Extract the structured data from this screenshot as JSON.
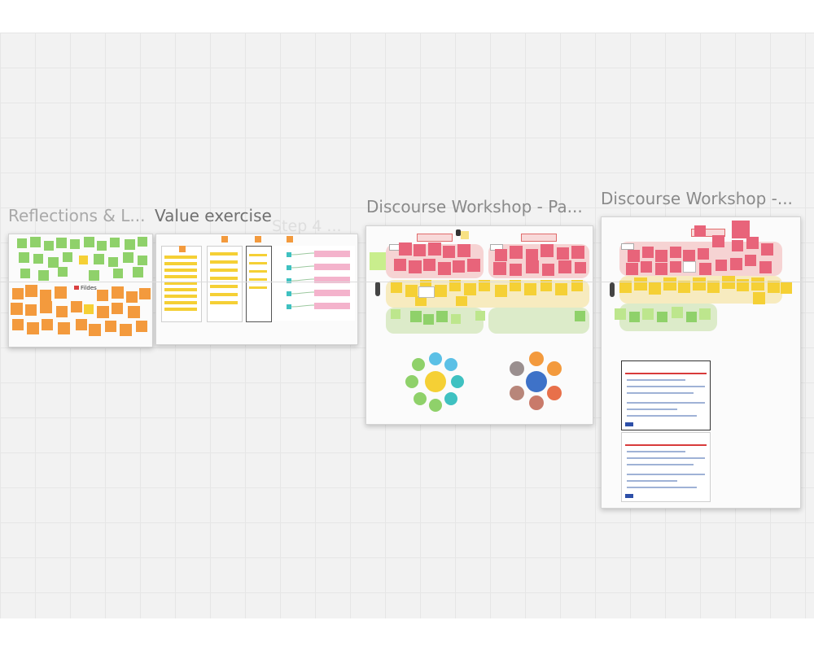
{
  "frames": [
    {
      "title": "Reflections & L..."
    },
    {
      "title": "Value exercise"
    },
    {
      "title": "Step 4 ..."
    },
    {
      "title": "Discourse Workshop - Pa..."
    },
    {
      "title": "Discourse Workshop -..."
    }
  ],
  "reflections": {
    "tag_label": "Fildes"
  },
  "colors": {
    "canvas": "#f2f2f2",
    "green_note": "#8fd16a",
    "orange_note": "#f39a3d",
    "yellow_note": "#f5d035",
    "red_note": "#e8647a",
    "light_green_note": "#bde68d",
    "pink_note": "#f4b3cc"
  }
}
